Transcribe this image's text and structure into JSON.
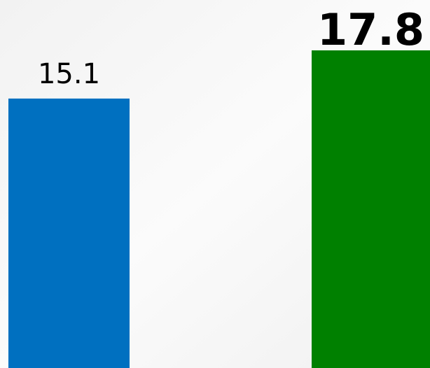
{
  "chart_data": {
    "type": "bar",
    "categories": [
      null,
      null
    ],
    "series": [
      {
        "name": null,
        "colors": [
          "#0070c0",
          "#008000"
        ],
        "values": [
          15.1,
          17.8
        ]
      }
    ]
  }
}
